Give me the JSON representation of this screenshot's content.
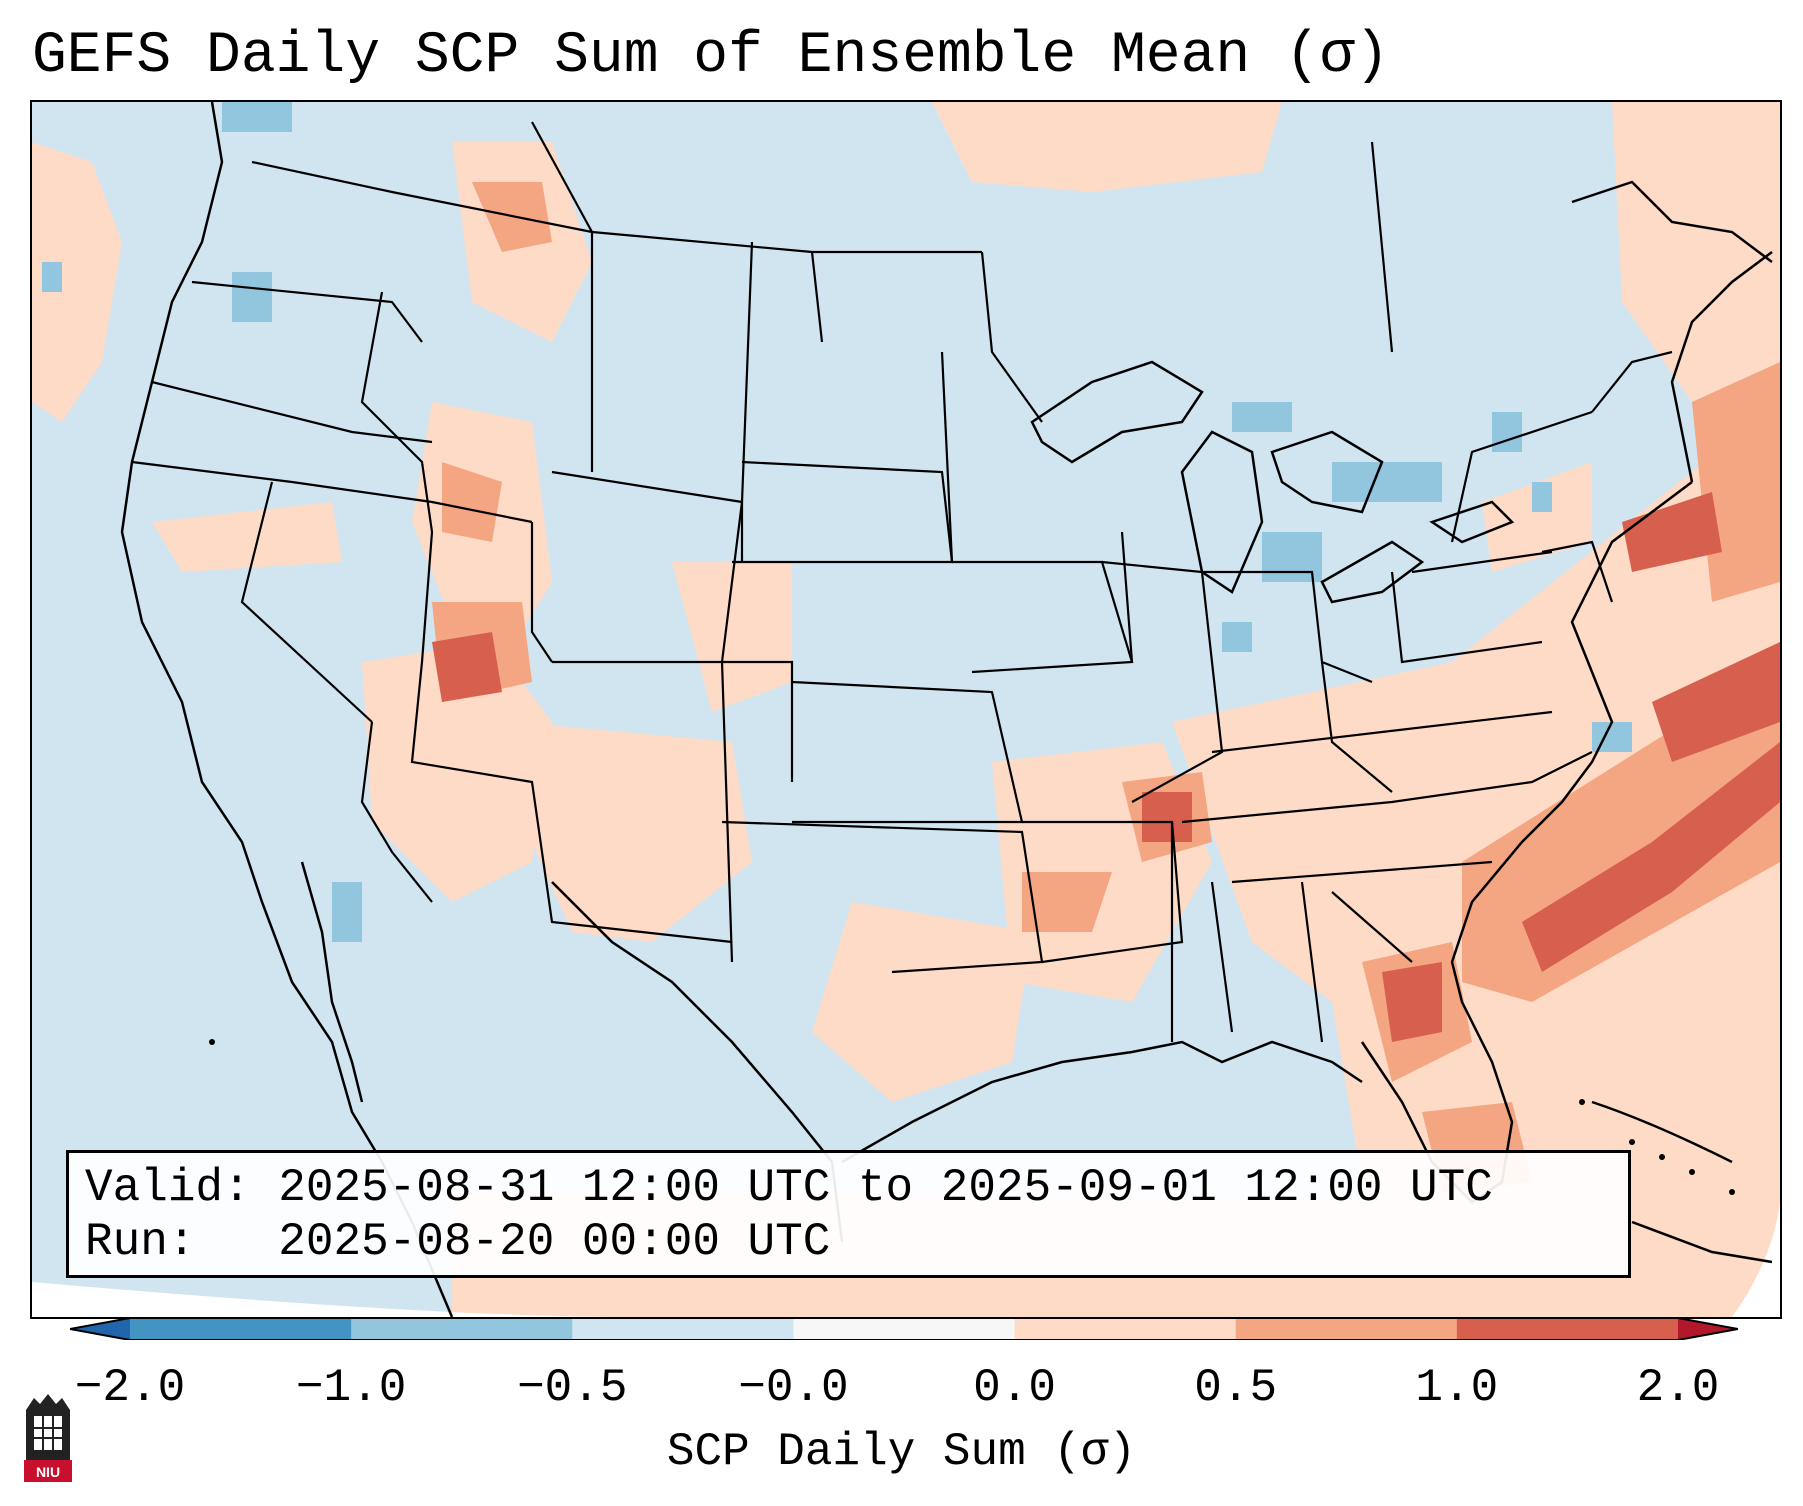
{
  "title": "GEFS Daily SCP Sum of Ensemble Mean (σ)",
  "info": {
    "valid_label": "Valid:",
    "valid_value": "2025-08-31 12:00 UTC to 2025-09-01 12:00 UTC",
    "run_label": "Run:",
    "run_value": "2025-08-20 00:00 UTC"
  },
  "colorbar": {
    "label": "SCP Daily Sum (σ)",
    "ticks": [
      "−2.0",
      "−1.0",
      "−0.5",
      "−0.0",
      "0.0",
      "0.5",
      "1.0",
      "2.0"
    ],
    "colors": [
      "#2166ac",
      "#4393c3",
      "#92c5de",
      "#d1e5f0",
      "#f7f7f7",
      "#fddbc7",
      "#f4a582",
      "#d6604d",
      "#b2182b"
    ]
  },
  "logo": {
    "text": "NIU",
    "icon": "niu-logo-icon"
  }
}
